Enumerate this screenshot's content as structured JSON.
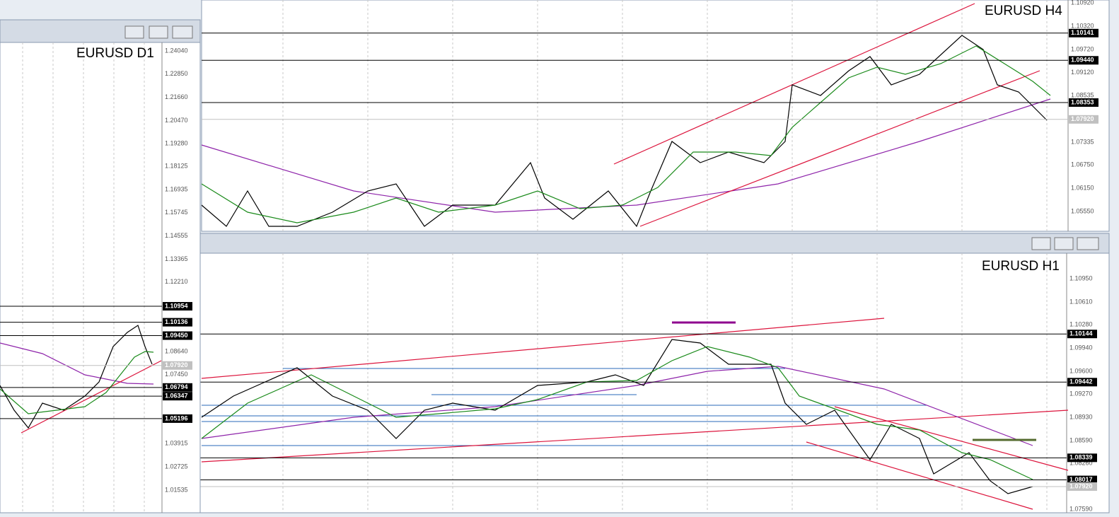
{
  "windows": [
    {
      "title": "EURUSD D1",
      "axis_labels": [
        "1.24040",
        "1.22850",
        "1.21660",
        "1.20470",
        "1.19280",
        "1.18125",
        "1.16935",
        "1.15745",
        "1.14555",
        "1.13365",
        "1.12210",
        "1.08640",
        "1.07450",
        "1.03915",
        "1.02725",
        "1.01535"
      ],
      "line_labels": [
        "1.10954",
        "1.10136",
        "1.09450",
        "1.06794",
        "1.06347",
        "1.05196"
      ],
      "current_price": "1.07920"
    },
    {
      "title": "EURUSD H4",
      "axis_labels": [
        "1.10920",
        "1.10320",
        "1.09720",
        "1.09120",
        "1.08535",
        "1.07335",
        "1.06750",
        "1.06150",
        "1.05550"
      ],
      "line_labels": [
        "1.10141",
        "1.09440",
        "1.08353"
      ],
      "current_price": "1.07920"
    },
    {
      "title": "EURUSD H1",
      "axis_labels": [
        "1.10950",
        "1.10610",
        "1.10280",
        "1.09940",
        "1.09600",
        "1.09270",
        "1.08930",
        "1.08590",
        "1.08260",
        "1.07590"
      ],
      "line_labels": [
        "1.10144",
        "1.09442",
        "1.08339",
        "1.08017"
      ],
      "current_price": "1.07920"
    }
  ]
}
